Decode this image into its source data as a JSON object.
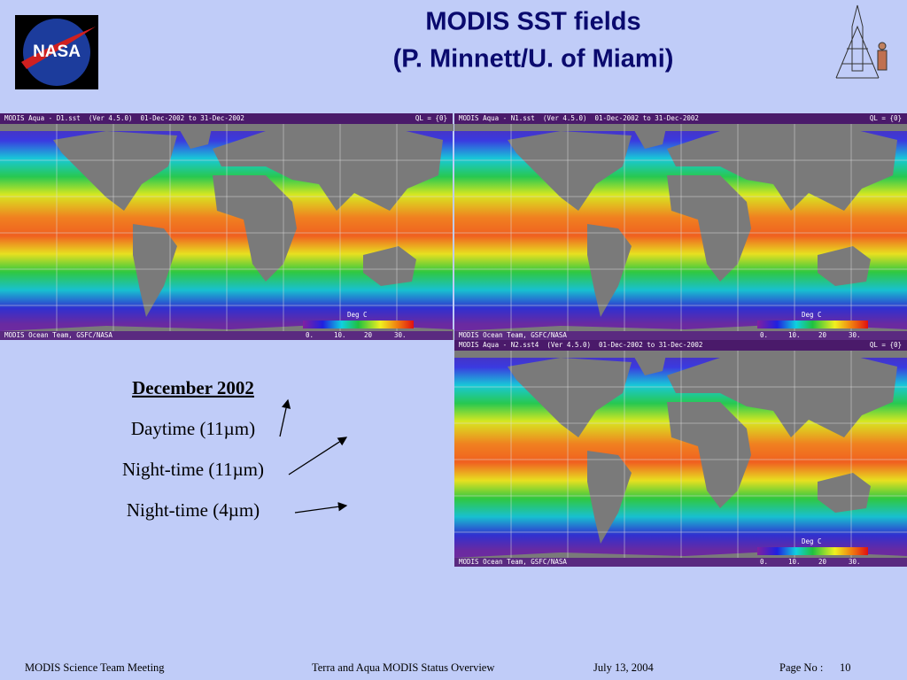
{
  "logo": {
    "text": "NASA"
  },
  "title": {
    "line1": "MODIS SST fields",
    "line2": "(P. Minnett/U. of Miami)"
  },
  "maps": [
    {
      "header": "MODIS Aqua - D1.sst  (Ver 4.5.0)  01-Dec-2002 to 31-Dec-2002",
      "ql": "QL = {0}",
      "footer": "MODIS Ocean Team, GSFC/NASA",
      "colorbar_title": "Deg C",
      "colorbar_labels": [
        "0.",
        "10.",
        "20",
        "30."
      ]
    },
    {
      "header": "MODIS Aqua - N1.sst  (Ver 4.5.0)  01-Dec-2002 to 31-Dec-2002",
      "ql": "QL = {0}",
      "footer": "MODIS Ocean Team, GSFC/NASA",
      "colorbar_title": "Deg C",
      "colorbar_labels": [
        "0.",
        "10.",
        "20",
        "30."
      ]
    },
    {
      "header": "MODIS Aqua - N2.sst4  (Ver 4.5.0)  01-Dec-2002 to 31-Dec-2002",
      "ql": "QL = {0}",
      "footer": "MODIS Ocean Team, GSFC/NASA",
      "colorbar_title": "Deg C",
      "colorbar_labels": [
        "0.",
        "10.",
        "20",
        "30."
      ]
    }
  ],
  "caption": {
    "heading": "December 2002",
    "lines": [
      "Daytime (11µm)",
      "Night-time (11µm)",
      "Night-time (4µm)"
    ]
  },
  "footer": {
    "meeting": "MODIS Science Team Meeting",
    "overview": "Terra and Aqua MODIS Status Overview",
    "date": "July 13, 2004",
    "page_label": "Page No :",
    "page_number": "10"
  }
}
